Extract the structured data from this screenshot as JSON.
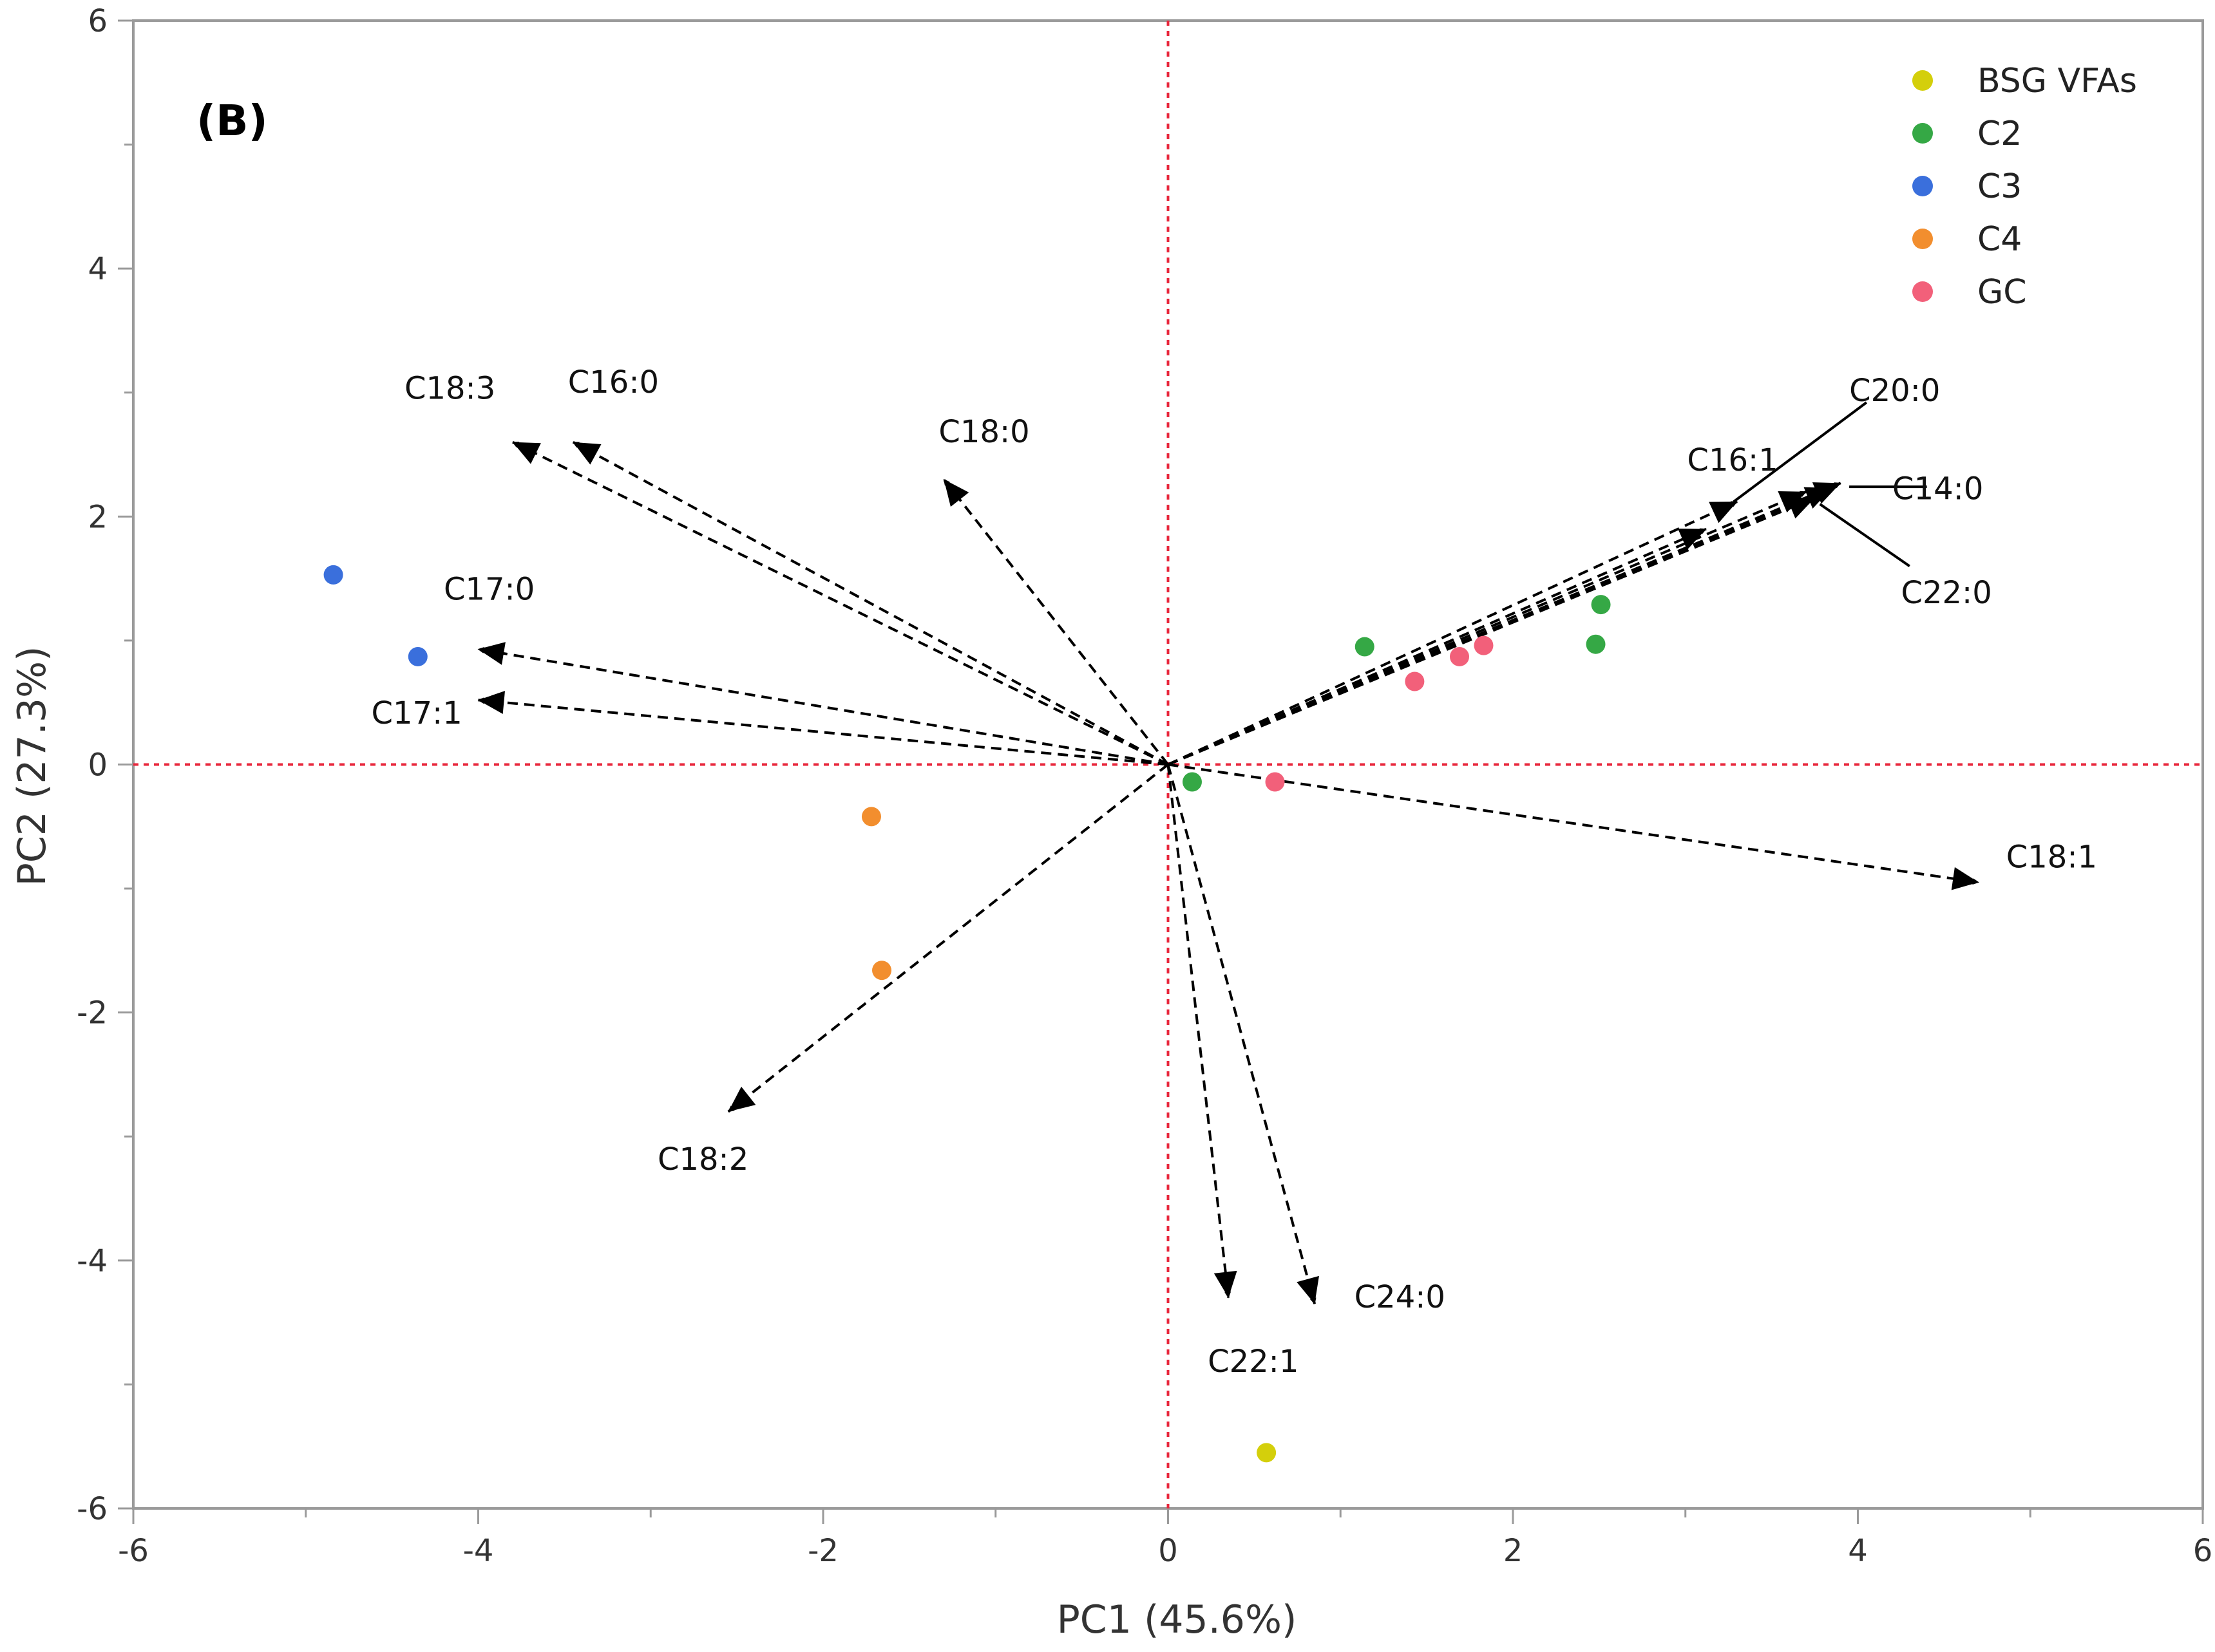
{
  "chart_data": {
    "type": "scatter",
    "panel_label": "(B)",
    "title": "",
    "xlabel": "PC1 (45.6%)",
    "ylabel": "PC2 (27.3%)",
    "xlim": [
      -6,
      6
    ],
    "ylim": [
      -6,
      6
    ],
    "xticks": [
      -6,
      -4,
      -2,
      0,
      2,
      4,
      6
    ],
    "yticks": [
      -6,
      -4,
      -2,
      0,
      2,
      4,
      6
    ],
    "xtick_labels": [
      "-6",
      "-4",
      "-2",
      "0",
      "2",
      "4",
      "6"
    ],
    "ytick_labels": [
      "-6",
      "-4",
      "-2",
      "0",
      "2",
      "4",
      "6"
    ],
    "reference_lines": {
      "x": 0,
      "y": 0,
      "color": "#e8263b"
    },
    "legend_position": "top-right",
    "series": [
      {
        "name": "BSG VFAs",
        "color": "#d4cf0b",
        "points": [
          [
            0.57,
            -5.55
          ]
        ]
      },
      {
        "name": "C2",
        "color": "#35a845",
        "points": [
          [
            0.14,
            -0.14
          ],
          [
            1.14,
            0.95
          ],
          [
            2.48,
            0.97
          ],
          [
            2.51,
            1.29
          ]
        ]
      },
      {
        "name": "C3",
        "color": "#3a6fdc",
        "points": [
          [
            -4.84,
            1.53
          ],
          [
            -4.35,
            0.87
          ]
        ]
      },
      {
        "name": "C4",
        "color": "#f28e2e",
        "points": [
          [
            -1.72,
            -0.42
          ],
          [
            -1.66,
            -1.66
          ]
        ]
      },
      {
        "name": "GC",
        "color": "#f2607a",
        "points": [
          [
            0.62,
            -0.14
          ],
          [
            1.43,
            0.67
          ],
          [
            1.69,
            0.87
          ],
          [
            1.83,
            0.96
          ]
        ]
      }
    ],
    "loadings": [
      {
        "name": "C18:3",
        "x": -3.8,
        "y": 2.6
      },
      {
        "name": "C16:0",
        "x": -3.45,
        "y": 2.6
      },
      {
        "name": "C18:0",
        "x": -1.3,
        "y": 2.3
      },
      {
        "name": "C17:0",
        "x": -4.0,
        "y": 0.93
      },
      {
        "name": "C17:1",
        "x": -4.0,
        "y": 0.52
      },
      {
        "name": "C18:2",
        "x": -2.55,
        "y": -2.8
      },
      {
        "name": "C22:1",
        "x": 0.35,
        "y": -4.3
      },
      {
        "name": "C24:0",
        "x": 0.85,
        "y": -4.35
      },
      {
        "name": "C18:1",
        "x": 4.7,
        "y": -0.95
      },
      {
        "name": "C16:1",
        "x": 3.3,
        "y": 2.12
      },
      {
        "name": "C20:0",
        "x": 3.9,
        "y": 2.27
      },
      {
        "name": "C14:0",
        "x": 3.85,
        "y": 2.23
      },
      {
        "name": "C22:0",
        "x": 3.75,
        "y": 2.15
      },
      {
        "name": "",
        "x": 3.12,
        "y": 1.9
      },
      {
        "name": "",
        "x": 3.7,
        "y": 2.2
      }
    ]
  }
}
